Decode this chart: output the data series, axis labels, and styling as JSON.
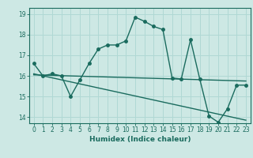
{
  "xlabel": "Humidex (Indice chaleur)",
  "bg_color": "#cde8e4",
  "grid_color": "#b0d8d4",
  "line_color": "#1a6b5e",
  "xlim": [
    -0.5,
    23.5
  ],
  "ylim": [
    13.7,
    19.3
  ],
  "xticks": [
    0,
    1,
    2,
    3,
    4,
    5,
    6,
    7,
    8,
    9,
    10,
    11,
    12,
    13,
    14,
    15,
    16,
    17,
    18,
    19,
    20,
    21,
    22,
    23
  ],
  "yticks": [
    14,
    15,
    16,
    17,
    18,
    19
  ],
  "series1_x": [
    0,
    1,
    2,
    3,
    4,
    5,
    6,
    7,
    8,
    9,
    10,
    11,
    12,
    13,
    14,
    15,
    16,
    17,
    18,
    19,
    20,
    21,
    22,
    23
  ],
  "series1_y": [
    16.6,
    16.0,
    16.1,
    16.0,
    15.0,
    15.8,
    16.6,
    17.3,
    17.5,
    17.5,
    17.7,
    18.85,
    18.65,
    18.4,
    18.25,
    15.9,
    15.85,
    17.75,
    15.85,
    14.05,
    13.75,
    14.4,
    15.55,
    15.55
  ],
  "series2_x": [
    0,
    23
  ],
  "series2_y": [
    16.05,
    15.75
  ],
  "series3_x": [
    0,
    23
  ],
  "series3_y": [
    16.1,
    13.85
  ],
  "markersize": 2.5,
  "linewidth": 1.0
}
